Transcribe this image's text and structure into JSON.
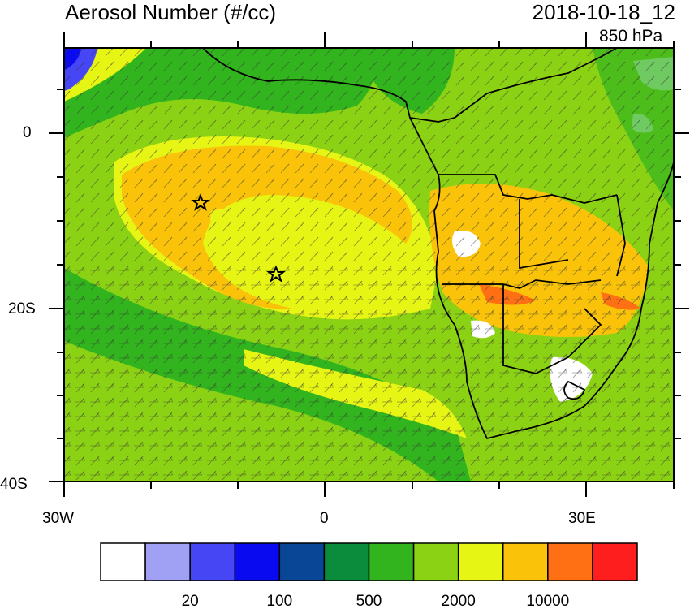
{
  "title": {
    "left": "Aerosol Number (#/cc)",
    "right": "2018-10-18_12",
    "level": "850 hPa"
  },
  "axes": {
    "y_ticks": [
      "0",
      "20S",
      "40S"
    ],
    "x_ticks": [
      "30W",
      "0",
      "30E"
    ]
  },
  "colorbar": {
    "colors": [
      "#ffffff",
      "#a0a0f5",
      "#4646f5",
      "#0a0af0",
      "#0a4696",
      "#0a8c3c",
      "#32b41e",
      "#8cd214",
      "#e6f514",
      "#fac30a",
      "#ff7014",
      "#ff1e1e"
    ],
    "labels": [
      "20",
      "100",
      "500",
      "2000",
      "10000"
    ]
  },
  "markers": {
    "icon": "star-icon",
    "count": 2
  }
}
